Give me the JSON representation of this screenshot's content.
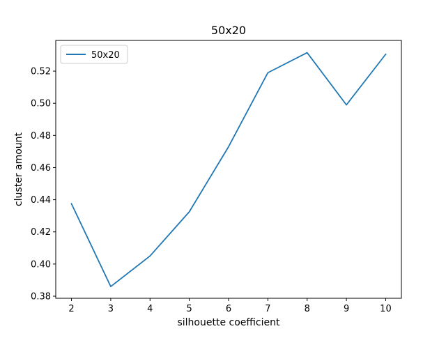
{
  "chart_data": {
    "type": "line",
    "title": "50x20",
    "xlabel": "silhouette coefficient",
    "ylabel": "cluster amount",
    "x": [
      2,
      3,
      4,
      5,
      6,
      7,
      8,
      9,
      10
    ],
    "series": [
      {
        "name": "50x20",
        "color": "#1f77b4",
        "values": [
          0.4375,
          0.386,
          0.405,
          0.4325,
          0.473,
          0.519,
          0.5315,
          0.499,
          0.5305
        ]
      }
    ],
    "xlim": [
      1.6,
      10.4
    ],
    "ylim": [
      0.3787,
      0.5391
    ],
    "xticks": [
      2,
      3,
      4,
      5,
      6,
      7,
      8,
      9,
      10
    ],
    "yticks": [
      0.38,
      0.4,
      0.42,
      0.44,
      0.46,
      0.48,
      0.5,
      0.52
    ],
    "ytick_labels": [
      "0.38",
      "0.40",
      "0.42",
      "0.44",
      "0.46",
      "0.48",
      "0.50",
      "0.52"
    ],
    "grid": false,
    "legend_position": "upper-left"
  }
}
